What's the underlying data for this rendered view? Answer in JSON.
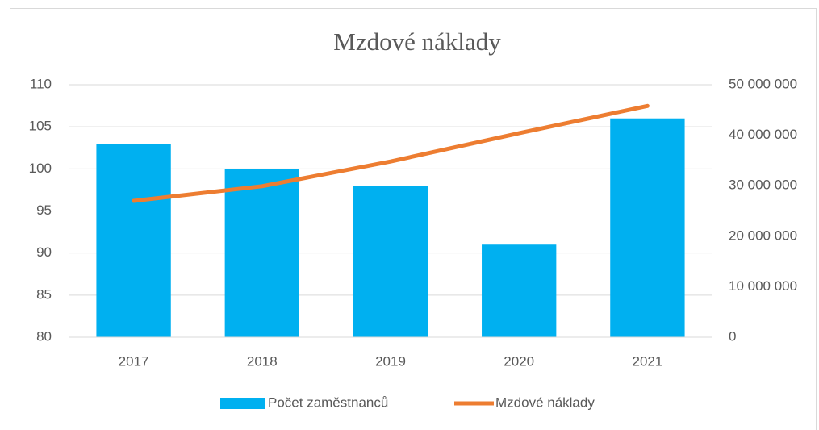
{
  "chart_data": {
    "type": "bar_line",
    "title": "Mzdové náklady",
    "categories": [
      "2017",
      "2018",
      "2019",
      "2020",
      "2021"
    ],
    "series": [
      {
        "name": "Počet zaměstnanců",
        "color": "#00b0f0",
        "type": "bar",
        "values": [
          103,
          100,
          98,
          91,
          106
        ]
      },
      {
        "name": "Mzdové náklady",
        "color": "#ed7d31",
        "type": "line",
        "axis": "y2",
        "values": [
          27000000,
          29900000,
          34800000,
          40400000,
          45800000
        ]
      }
    ],
    "ylim": [
      80,
      110
    ],
    "yticks": [
      80,
      85,
      90,
      95,
      100,
      105,
      110
    ],
    "y2lim": [
      0,
      50000000
    ],
    "y2ticks": [
      0,
      {
        "value": 10000000,
        "label": "10 000 000"
      },
      {
        "value": 20000000,
        "label": "20 000 000"
      },
      {
        "value": 30000000,
        "label": "30 000 000"
      },
      {
        "value": 40000000,
        "label": "40 000 000"
      },
      {
        "value": 50000000,
        "label": "50 000 000"
      }
    ],
    "grid": true,
    "legend": "bottom"
  }
}
